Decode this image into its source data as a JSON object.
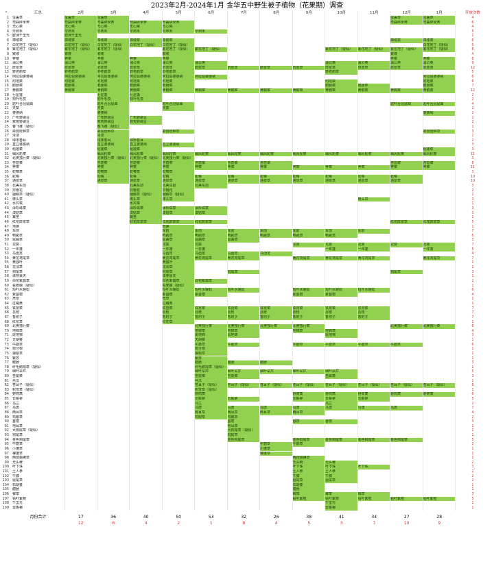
{
  "title": "2023年2月-2024年1月  金华五中野生被子植物（花果期）调查",
  "header": {
    "corner": "*",
    "name_col": "汇总",
    "months": [
      "2月",
      "3月",
      "4月",
      "5月",
      "6月",
      "7月",
      "8月",
      "9月",
      "10月",
      "11月",
      "12月",
      "1月"
    ],
    "count_col": "开放次数"
  },
  "fill_color": "#92d050",
  "count_color": "#e03030",
  "plants": [
    {
      "n": "宝盖草",
      "m": [
        0,
        1,
        10,
        11
      ],
      "c": "4"
    },
    {
      "n": "弯曲碎米荠",
      "m": [
        0,
        1,
        2,
        3,
        10,
        11
      ],
      "c": "6"
    },
    {
      "n": "无心菜",
      "m": [
        0,
        1,
        2,
        3
      ],
      "c": "4"
    },
    {
      "n": "早熟禾",
      "m": [
        0,
        1,
        2,
        3,
        4
      ],
      "c": "5"
    },
    {
      "n": "欧洲千里光",
      "m": [
        0
      ],
      "c": "1"
    },
    {
      "n": "蔊缕菜",
      "m": [
        0,
        1,
        2,
        3,
        10,
        11
      ],
      "c": "6"
    },
    {
      "n": "白花地丁（疑似）",
      "m": [
        0,
        1,
        2,
        3,
        11
      ],
      "c": "5"
    },
    {
      "n": "紫花地丁（疑似）",
      "m": [
        0,
        1,
        3,
        4,
        8,
        9,
        10,
        11
      ],
      "c": "8"
    },
    {
      "n": "繁缕",
      "m": [
        0,
        1,
        3,
        10
      ],
      "c": "4"
    },
    {
      "n": "荠菜",
      "m": [
        0,
        1,
        2,
        3,
        10,
        11
      ],
      "c": "6"
    },
    {
      "n": "蒲公英",
      "m": [
        0,
        1,
        2,
        3,
        4,
        8,
        9,
        10,
        11
      ],
      "c": "9"
    },
    {
      "n": "酢浆草",
      "m": [
        0,
        1,
        2,
        3,
        4,
        5,
        6,
        7,
        8,
        9,
        10,
        11
      ],
      "c": "12"
    },
    {
      "n": "野老鹳草",
      "m": [
        0,
        1,
        2,
        3,
        8
      ],
      "c": "5"
    },
    {
      "n": "阿拉伯婆婆纳",
      "m": [
        0,
        1,
        2,
        3,
        4,
        11
      ],
      "c": "6"
    },
    {
      "n": "附地菜",
      "m": [
        0,
        1,
        2,
        3,
        8,
        11
      ],
      "c": "6"
    },
    {
      "n": "鹅肠菜",
      "m": [
        0,
        1,
        2,
        3,
        8,
        9,
        11
      ],
      "c": "7"
    },
    {
      "n": "黄鹌菜",
      "m": [
        0,
        1,
        2,
        3,
        4,
        5,
        6,
        7,
        8,
        9,
        10,
        11
      ],
      "c": "12"
    },
    {
      "n": "七星莲",
      "m": [
        1,
        2
      ],
      "c": "2"
    },
    {
      "n": "刻叶毛茛",
      "m": [
        1,
        2
      ],
      "c": "2"
    },
    {
      "n": "匙叶合冠鼠曲",
      "m": [
        1,
        3,
        10,
        11
      ],
      "c": "4"
    },
    {
      "n": "天葵",
      "m": [
        1,
        3
      ],
      "c": "2"
    },
    {
      "n": "婆婆纳",
      "m": [
        1,
        11
      ],
      "c": "2"
    },
    {
      "n": "广布野豌豆",
      "m": [
        1,
        2
      ],
      "c": "2"
    },
    {
      "n": "救荒野豌豆",
      "m": [
        1,
        2
      ],
      "c": "2"
    },
    {
      "n": "春飞蓬（疑似）",
      "m": [
        1
      ],
      "c": "1"
    },
    {
      "n": "柔弱斑种草",
      "m": [
        1,
        3,
        11
      ],
      "c": "3"
    },
    {
      "n": "泽漆",
      "m": [
        1
      ],
      "c": "1"
    },
    {
      "n": "球序卷耳",
      "m": [
        1,
        2
      ],
      "c": "2"
    },
    {
      "n": "直立婆婆纳",
      "m": [
        1,
        2,
        3
      ],
      "c": "3"
    },
    {
      "n": "稻槎菜",
      "m": [
        1,
        2,
        11
      ],
      "c": "3"
    },
    {
      "n": "细风轮菜",
      "m": [
        1,
        2,
        3,
        4,
        5,
        6,
        7,
        8,
        9,
        10,
        11
      ],
      "c": "11"
    },
    {
      "n": "北美独行菜（疑似）",
      "m": [
        1,
        2,
        3
      ],
      "c": "3"
    },
    {
      "n": "苦苣菜",
      "m": [
        1,
        2,
        3,
        4,
        5,
        6,
        10,
        11
      ],
      "c": "8"
    },
    {
      "n": "荠菜",
      "m": [
        1,
        2,
        3,
        4,
        5,
        6,
        7,
        8,
        9,
        10,
        11
      ],
      "c": "11"
    },
    {
      "n": "蛇莓草",
      "m": [
        1,
        2,
        3
      ],
      "c": "3"
    },
    {
      "n": "蛇莓",
      "m": [
        1,
        2,
        3,
        4,
        5,
        6,
        7,
        8,
        9,
        10
      ],
      "c": "10"
    },
    {
      "n": "通泉草",
      "m": [
        1,
        2,
        3,
        4,
        5,
        6,
        7,
        8,
        9,
        10
      ],
      "c": "10"
    },
    {
      "n": "北美车前",
      "m": [
        2,
        3,
        4
      ],
      "c": "3"
    },
    {
      "n": "异檐花",
      "m": [
        2,
        3
      ],
      "c": "2"
    },
    {
      "n": "捆鳞草（疑似）",
      "m": [
        2,
        3
      ],
      "c": "2"
    },
    {
      "n": "棒头草",
      "m": [
        2,
        3,
        9
      ],
      "c": "3"
    },
    {
      "n": "水芹菜",
      "m": [
        2
      ],
      "c": "1"
    },
    {
      "n": "泽珍珠菜",
      "m": [
        2,
        3,
        4
      ],
      "c": "3"
    },
    {
      "n": "漆姑草",
      "m": [
        2,
        3,
        4
      ],
      "c": "3"
    },
    {
      "n": "翼茎",
      "m": [
        2
      ],
      "c": "1"
    },
    {
      "n": "红花酢浆草",
      "m": [
        2,
        3,
        4,
        10,
        11
      ],
      "c": "5"
    },
    {
      "n": "地笋",
      "m": [
        3
      ],
      "c": "1"
    },
    {
      "n": "车前",
      "m": [
        3,
        4,
        5,
        6,
        7,
        8,
        9
      ],
      "c": "7"
    },
    {
      "n": "鸭跖草",
      "m": [
        3,
        4,
        5,
        6,
        7,
        8
      ],
      "c": "6"
    },
    {
      "n": "鼠曲草",
      "m": [
        3,
        4,
        5
      ],
      "c": "3"
    },
    {
      "n": "龙葵",
      "m": [
        3,
        4,
        7,
        8,
        9,
        10,
        11
      ],
      "c": "7"
    },
    {
      "n": "一年蓬",
      "m": [
        3,
        4,
        8,
        9,
        11
      ],
      "c": "5"
    },
    {
      "n": "马齿苋",
      "m": [
        3,
        4,
        5,
        6
      ],
      "c": "4"
    },
    {
      "n": "黄花鸢尾草",
      "m": [
        3,
        4,
        5,
        7,
        8,
        9,
        11
      ],
      "c": "7"
    },
    {
      "n": "黄独叶",
      "m": [
        3
      ],
      "c": "1"
    },
    {
      "n": "龙须草",
      "m": [
        3
      ],
      "c": "1"
    },
    {
      "n": "狗尾草",
      "m": [
        3,
        5,
        10
      ],
      "c": "3"
    },
    {
      "n": "珠芽景天",
      "m": [
        3
      ],
      "c": "1"
    },
    {
      "n": "白花紫露草",
      "m": [
        3,
        4
      ],
      "c": "2"
    },
    {
      "n": "看麦娘（疑似）",
      "m": [
        3
      ],
      "c": "1"
    },
    {
      "n": "短叶水蜈蚣",
      "m": [
        3,
        4,
        5,
        7,
        8,
        9
      ],
      "c": "6"
    },
    {
      "n": "紫苜蓿",
      "m": [
        3,
        4,
        7,
        8
      ],
      "c": "4"
    },
    {
      "n": "荩草",
      "m": [
        3
      ],
      "c": "1"
    },
    {
      "n": "过路黄",
      "m": [
        3
      ],
      "c": "1"
    },
    {
      "n": "铁苋菜",
      "m": [
        3,
        4,
        5,
        6,
        7,
        8,
        9
      ],
      "c": "7"
    },
    {
      "n": "荔枝",
      "m": [
        3,
        4,
        5,
        6,
        7,
        8,
        9
      ],
      "c": "7"
    },
    {
      "n": "香附子",
      "m": [
        3,
        4,
        5,
        6,
        7,
        8,
        9
      ],
      "c": "7"
    },
    {
      "n": "红花草",
      "m": [
        3
      ],
      "c": "1"
    },
    {
      "n": "北美独行菜",
      "m": [
        4,
        5,
        6,
        7,
        10,
        11
      ],
      "c": "6"
    },
    {
      "n": "地锦草",
      "m": [
        4,
        5,
        7,
        8
      ],
      "c": "4"
    },
    {
      "n": "斑地锦",
      "m": [
        4,
        5,
        8
      ],
      "c": "3"
    },
    {
      "n": "天胡荽",
      "m": [
        4
      ],
      "c": "1"
    },
    {
      "n": "牛筋草",
      "m": [
        4,
        5,
        7,
        8,
        9,
        10
      ],
      "c": "6"
    },
    {
      "n": "狗牙根",
      "m": [
        4
      ],
      "c": "1"
    },
    {
      "n": "狼杷草",
      "m": [
        4
      ],
      "c": "1"
    },
    {
      "n": "紫苏",
      "m": [
        4
      ],
      "c": "1"
    },
    {
      "n": "鳢肠",
      "m": [
        4,
        5,
        6
      ],
      "c": "3"
    },
    {
      "n": "纤毛鹅观草（疑似）",
      "m": [
        4
      ],
      "c": "1"
    },
    {
      "n": "细叶旱芹",
      "m": [
        4,
        5,
        6,
        7,
        8
      ],
      "c": "5"
    },
    {
      "n": "苦荬菜",
      "m": [
        4,
        5,
        8
      ],
      "c": "3"
    },
    {
      "n": "丝瓜",
      "m": [
        4
      ],
      "c": "1"
    },
    {
      "n": "苍耳子（疑似）",
      "m": [
        4,
        5,
        6,
        7,
        8,
        9,
        10,
        11
      ],
      "c": "8"
    },
    {
      "n": "积雪草（疑似）",
      "m": [
        4
      ],
      "c": "1"
    },
    {
      "n": "野茼蒿",
      "m": [
        4,
        7,
        8,
        9,
        10,
        11
      ],
      "c": "6"
    },
    {
      "n": "长鬃蓼",
      "m": [
        4,
        5,
        7,
        8,
        9
      ],
      "c": "5"
    },
    {
      "n": "马兰",
      "m": [
        4,
        8
      ],
      "c": "2"
    },
    {
      "n": "马唐",
      "m": [
        4,
        5,
        6,
        7,
        8,
        9,
        10
      ],
      "c": "7"
    },
    {
      "n": "两耳草",
      "m": [
        4,
        5,
        6,
        7
      ],
      "c": "4"
    },
    {
      "n": "鸡眼草",
      "m": [
        4,
        5
      ],
      "c": "2"
    },
    {
      "n": "苜蓿",
      "m": [
        5,
        7,
        8
      ],
      "c": "3"
    },
    {
      "n": "地耳草",
      "m": [
        5
      ],
      "c": "1"
    },
    {
      "n": "大狗尾草（疑似）",
      "m": [
        5
      ],
      "c": "1"
    },
    {
      "n": "狗尾草",
      "m": [
        5
      ],
      "c": "1"
    },
    {
      "n": "金色狗尾草",
      "m": [
        5,
        7,
        8,
        9,
        10
      ],
      "c": "5"
    },
    {
      "n": "牛筋草",
      "m": [
        6,
        7
      ],
      "c": "2"
    },
    {
      "n": "小蓬草",
      "m": [
        6
      ],
      "c": "1"
    },
    {
      "n": "裸蓬草",
      "m": [
        6
      ],
      "c": "1"
    },
    {
      "n": "两歧飘拂草",
      "m": [
        7
      ],
      "c": "1"
    },
    {
      "n": "光头稗",
      "m": [
        7,
        8
      ],
      "c": "2"
    },
    {
      "n": "叶下珠",
      "m": [
        7,
        8,
        9
      ],
      "c": "3"
    },
    {
      "n": "土人参",
      "m": [
        7,
        8
      ],
      "c": "2"
    },
    {
      "n": "牛膝",
      "m": [
        7,
        8
      ],
      "c": "2"
    },
    {
      "n": "鼠尾草",
      "m": [
        7,
        8
      ],
      "c": "2"
    },
    {
      "n": "石胡荽",
      "m": [
        7
      ],
      "c": "1"
    },
    {
      "n": "醴肠",
      "m": [
        7
      ],
      "c": "1"
    },
    {
      "n": "稗草",
      "m": [
        7,
        8,
        9
      ],
      "c": "3"
    },
    {
      "n": "钻叶紫菀",
      "m": [
        7,
        8,
        9,
        10,
        11
      ],
      "c": "5"
    },
    {
      "n": "千里光",
      "m": [
        8
      ],
      "c": "1"
    },
    {
      "n": "雷香菊",
      "m": [
        8
      ],
      "c": "1"
    }
  ],
  "totals": {
    "label": "月份合计",
    "monthly": [
      "17",
      "36",
      "40",
      "50",
      "53",
      "32",
      "26",
      "38",
      "41",
      "34",
      "27",
      "28"
    ],
    "new": [
      "12",
      "6",
      "4",
      "2",
      "1",
      "8",
      "4",
      "5",
      "3",
      "7",
      "10",
      "9"
    ]
  }
}
